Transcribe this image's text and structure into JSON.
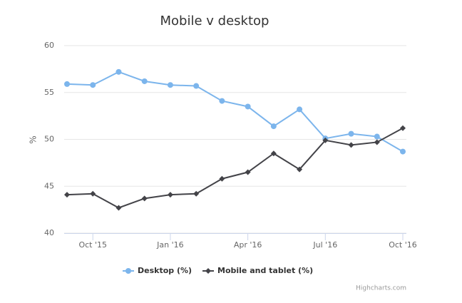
{
  "chart_data": {
    "type": "line",
    "title": "Mobile v desktop",
    "y_label": "%",
    "categories": [
      null,
      "Oct '15",
      null,
      null,
      "Jan '16",
      null,
      null,
      "Apr '16",
      null,
      null,
      "Jul '16",
      null,
      null,
      "Oct '16"
    ],
    "series": [
      {
        "name": "Desktop (%)",
        "color": "#7cb5ec",
        "marker": "circle",
        "values": [
          55.9,
          55.8,
          57.2,
          56.2,
          55.8,
          55.7,
          54.1,
          53.5,
          51.4,
          53.2,
          50.1,
          50.6,
          50.3,
          48.7
        ]
      },
      {
        "name": "Mobile and tablet (%)",
        "color": "#434348",
        "marker": "diamond",
        "values": [
          44.1,
          44.2,
          42.7,
          43.7,
          44.1,
          44.2,
          45.8,
          46.5,
          48.5,
          46.8,
          49.9,
          49.4,
          49.7,
          51.2
        ]
      }
    ],
    "ylim": [
      40,
      60
    ],
    "yticks": [
      40,
      45,
      50,
      55,
      60
    ],
    "grid": true,
    "legend": "bottom",
    "credits": "Highcharts.com"
  }
}
